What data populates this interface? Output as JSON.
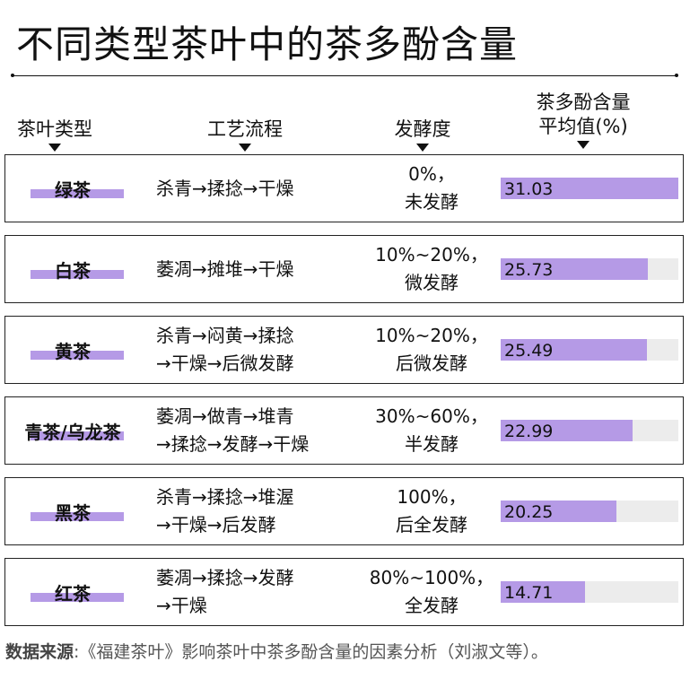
{
  "title": "不同类型茶叶中的茶多酚含量",
  "headers": {
    "type": "茶叶类型",
    "process": "工艺流程",
    "fermentation": "发酵度",
    "polyphenol_line1": "茶多酚含量",
    "polyphenol_line2": "平均值(%)"
  },
  "rows": [
    {
      "tea": "绿茶",
      "process": [
        "杀青→揉捻→干燥"
      ],
      "ferm": [
        "0%，",
        "未发酵"
      ],
      "label": "31.03"
    },
    {
      "tea": "白茶",
      "process": [
        "萎凋→摊堆→干燥"
      ],
      "ferm": [
        "10%~20%，",
        "微发酵"
      ],
      "label": "25.73"
    },
    {
      "tea": "黄茶",
      "process": [
        "杀青→闷黄→揉捻",
        "→干燥→后微发酵"
      ],
      "ferm": [
        "10%~20%，",
        "后微发酵"
      ],
      "label": "25.49"
    },
    {
      "tea": "青茶/乌龙茶",
      "process": [
        "萎凋→做青→堆青",
        "→揉捻→发酵→干燥"
      ],
      "ferm": [
        "30%~60%，",
        "半发酵"
      ],
      "label": "22.99"
    },
    {
      "tea": "黑茶",
      "process": [
        "杀青→揉捻→堆渥",
        "→干燥→后发酵"
      ],
      "ferm": [
        "100%，",
        "后全发酵"
      ],
      "label": "20.25"
    },
    {
      "tea": "红茶",
      "process": [
        "萎凋→揉捻→发酵",
        "→干燥"
      ],
      "ferm": [
        "80%~100%，",
        "全发酵"
      ],
      "label": "14.71"
    }
  ],
  "chart_data": {
    "type": "bar",
    "categories": [
      "绿茶",
      "白茶",
      "黄茶",
      "青茶/乌龙茶",
      "黑茶",
      "红茶"
    ],
    "values": [
      31.03,
      25.73,
      25.49,
      22.99,
      20.25,
      14.71
    ],
    "title": "不同类型茶叶中的茶多酚含量",
    "ylabel": "茶多酚含量 平均值(%)",
    "xlim": [
      0,
      31.03
    ],
    "bar_color": "#b59ae6",
    "track_color": "#ececec"
  },
  "source": {
    "label": "数据来源",
    "text": ":《福建茶叶》影响茶叶中茶多酚含量的因素分析（刘淑文等）。"
  }
}
